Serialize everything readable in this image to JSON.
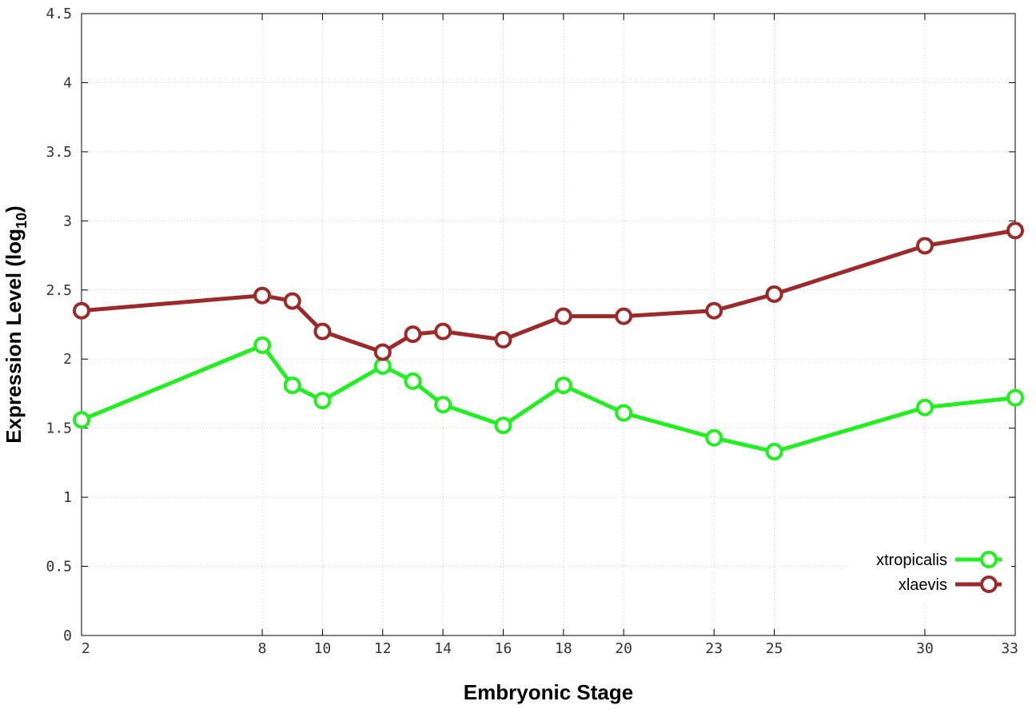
{
  "chart_data": {
    "type": "line",
    "title": "",
    "xlabel": "Embryonic Stage",
    "ylabel_main": "Expression Level (log",
    "ylabel_sub": "10",
    "ylabel_end": ")",
    "xlim": [
      2,
      33
    ],
    "ylim": [
      0,
      4.5
    ],
    "x_ticks": [
      2,
      8,
      10,
      12,
      14,
      16,
      18,
      20,
      23,
      25,
      30,
      33
    ],
    "x_tick_labels": [
      "2",
      "8",
      "10",
      "12",
      "14",
      "16",
      "18",
      "20",
      "23",
      "25",
      "30",
      "33"
    ],
    "y_ticks": [
      0,
      0.5,
      1,
      1.5,
      2,
      2.5,
      3,
      3.5,
      4,
      4.5
    ],
    "y_tick_labels": [
      "0",
      "0.5",
      "1",
      "1.5",
      "2",
      "2.5",
      "3",
      "3.5",
      "4",
      "4.5"
    ],
    "grid": true,
    "legend_position": "bottom-right",
    "x": [
      2,
      8,
      9,
      10,
      12,
      13,
      14,
      16,
      18,
      20,
      23,
      25,
      30,
      33
    ],
    "series": [
      {
        "name": "xtropicalis",
        "color": "#22ee22",
        "values": [
          1.56,
          2.1,
          1.81,
          1.7,
          1.95,
          1.84,
          1.67,
          1.52,
          1.81,
          1.61,
          1.43,
          1.33,
          1.65,
          1.72
        ]
      },
      {
        "name": "xlaevis",
        "color": "#9b2a2a",
        "values": [
          2.35,
          2.46,
          2.42,
          2.2,
          2.05,
          2.18,
          2.2,
          2.14,
          2.31,
          2.31,
          2.35,
          2.47,
          2.82,
          2.93
        ]
      }
    ]
  }
}
